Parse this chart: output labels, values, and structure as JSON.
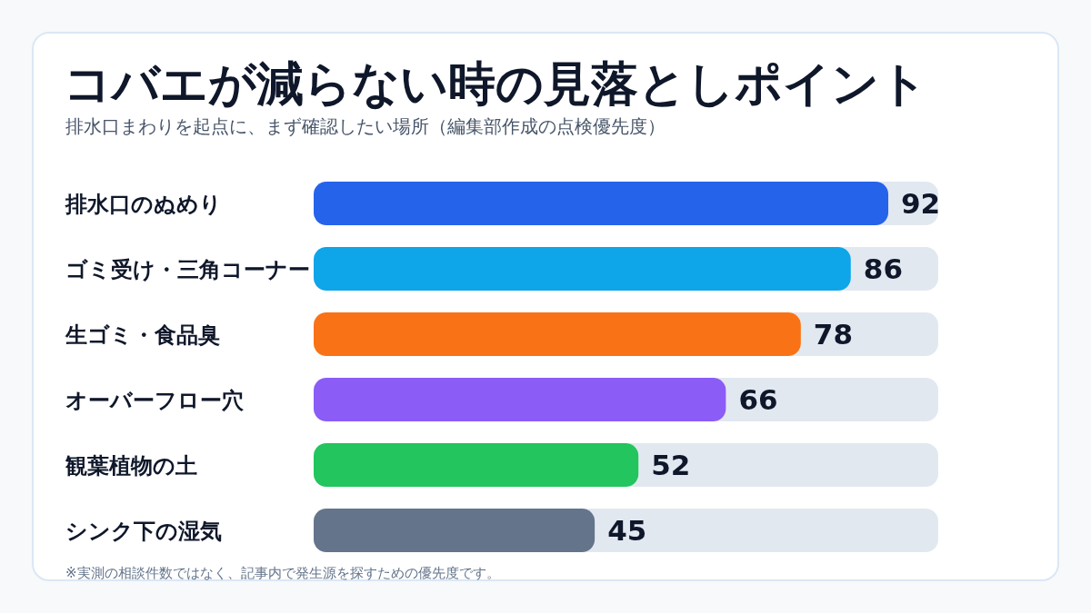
{
  "chart_data": {
    "type": "bar",
    "orientation": "horizontal",
    "title": "コバエが減らない時の見落としポイント",
    "subtitle": "排水口まわりを起点に、まず確認したい場所（編集部作成の点検優先度）",
    "categories": [
      "排水口のぬめり",
      "ゴミ受け・三角コーナー",
      "生ゴミ・食品臭",
      "オーバーフロー穴",
      "観葉植物の土",
      "シンク下の湿気"
    ],
    "values": [
      92,
      86,
      78,
      66,
      52,
      45
    ],
    "colors": [
      "#2563eb",
      "#0ea5e9",
      "#f97316",
      "#8b5cf6",
      "#22c55e",
      "#64748b"
    ],
    "xlim": [
      0,
      100
    ],
    "data_labels": true,
    "annotations": [
      "※実測の相談件数ではなく、記事内で発生源を探すための優先度です。"
    ]
  }
}
